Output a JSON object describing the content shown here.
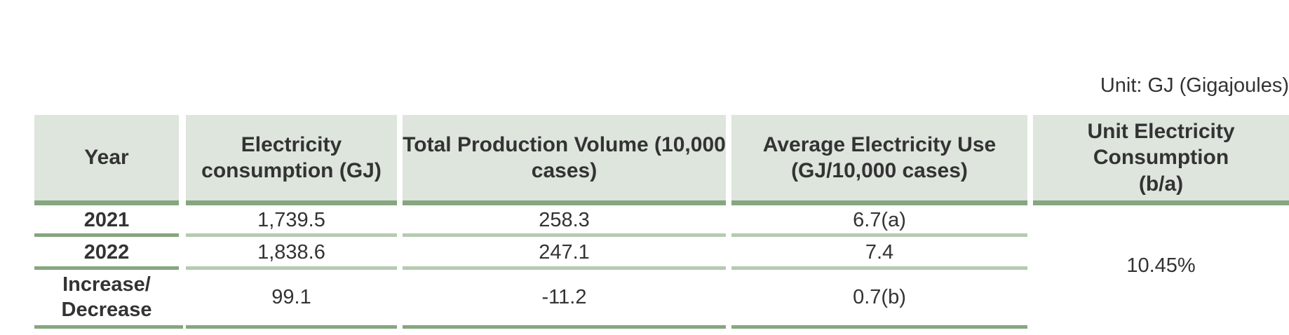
{
  "unit": "Unit: GJ (Gigajoules)",
  "table": {
    "header": [
      "Year",
      "Electricity consumption (GJ)",
      "Total Production Volume (10,000 cases)",
      "Average Electricity Use (GJ/10,000 cases)",
      "Unit Electricity Consumption (b/a)"
    ],
    "rows": [
      [
        "2021",
        "1,739.5",
        "258.3",
        "6.7(a)"
      ],
      [
        "2022",
        "1,838.6",
        "247.1",
        "7.4"
      ],
      [
        "Increase/ Decrease",
        "99.1",
        "-11.2",
        "0.7(b)"
      ]
    ],
    "merged_cell": "10.45%"
  }
}
